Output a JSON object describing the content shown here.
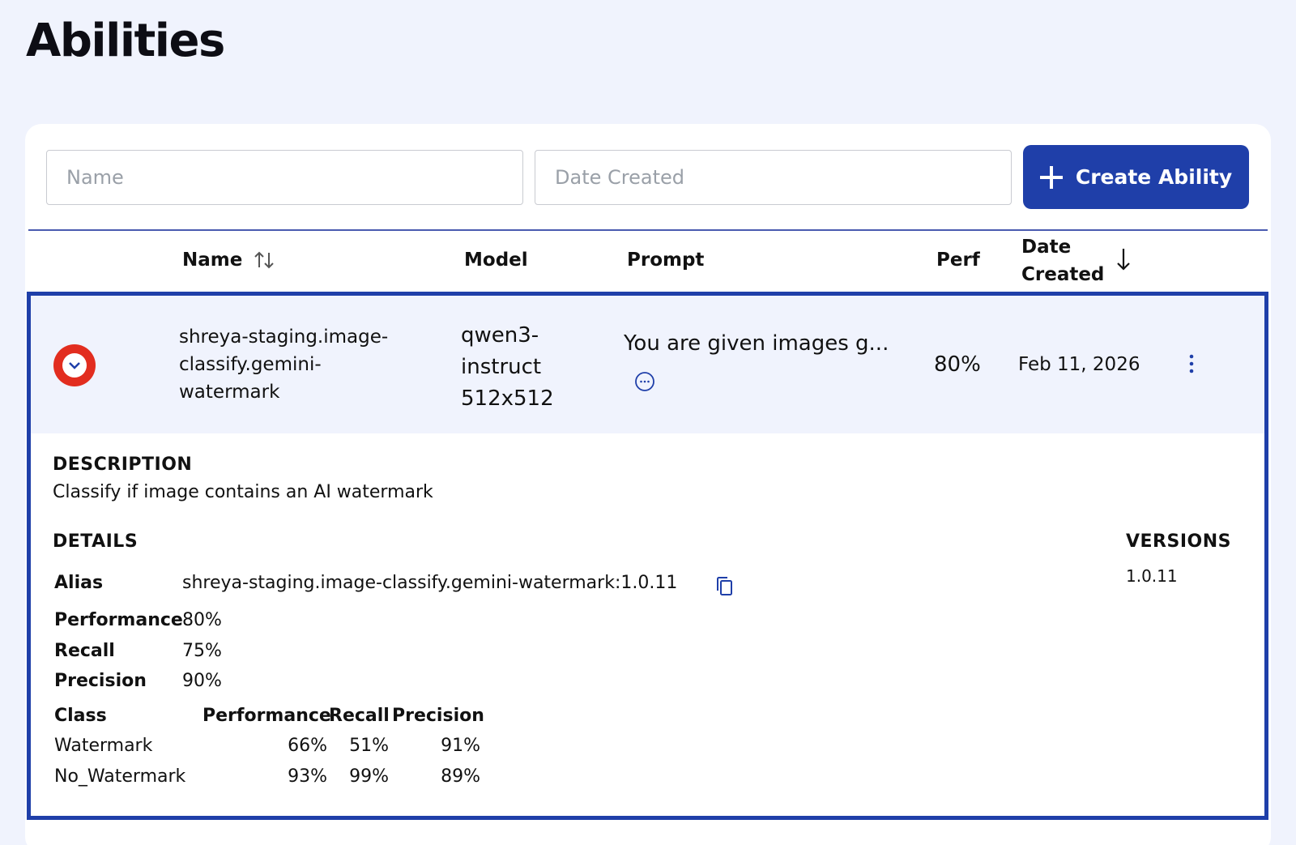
{
  "page": {
    "title": "Abilities"
  },
  "filters": {
    "name_placeholder": "Name",
    "date_placeholder": "Date Created",
    "create_label": "Create Ability"
  },
  "table": {
    "headers": {
      "name": "Name",
      "model": "Model",
      "prompt": "Prompt",
      "perf": "Perf",
      "date_line1": "Date",
      "date_line2": "Created"
    },
    "rows": [
      {
        "name": [
          "shreya-staging.image-",
          "classify.gemini-",
          "watermark"
        ],
        "model": [
          "qwen3-",
          "instruct",
          "512x512"
        ],
        "prompt": "You are given images g...",
        "perf": "80%",
        "date": "Feb 11, 2026"
      }
    ]
  },
  "detail": {
    "description_label": "DESCRIPTION",
    "description": "Classify if image contains an AI watermark",
    "details_label": "DETAILS",
    "versions_label": "VERSIONS",
    "versions": [
      "1.0.11"
    ],
    "alias_label": "Alias",
    "alias": "shreya-staging.image-classify.gemini-watermark:1.0.11",
    "performance_label": "Performance",
    "performance": "80%",
    "recall_label": "Recall",
    "recall": "75%",
    "precision_label": "Precision",
    "precision": "90%",
    "class_table": {
      "headers": [
        "Class",
        "Performance",
        "Recall",
        "Precision"
      ],
      "rows": [
        {
          "class": "Watermark",
          "performance": "66%",
          "recall": "51%",
          "precision": "91%"
        },
        {
          "class": "No_Watermark",
          "performance": "93%",
          "recall": "99%",
          "precision": "89%"
        }
      ]
    }
  },
  "colors": {
    "primary": "#1f3fa9",
    "expand_button": "#e22d1f",
    "background": "#f0f3fd"
  }
}
